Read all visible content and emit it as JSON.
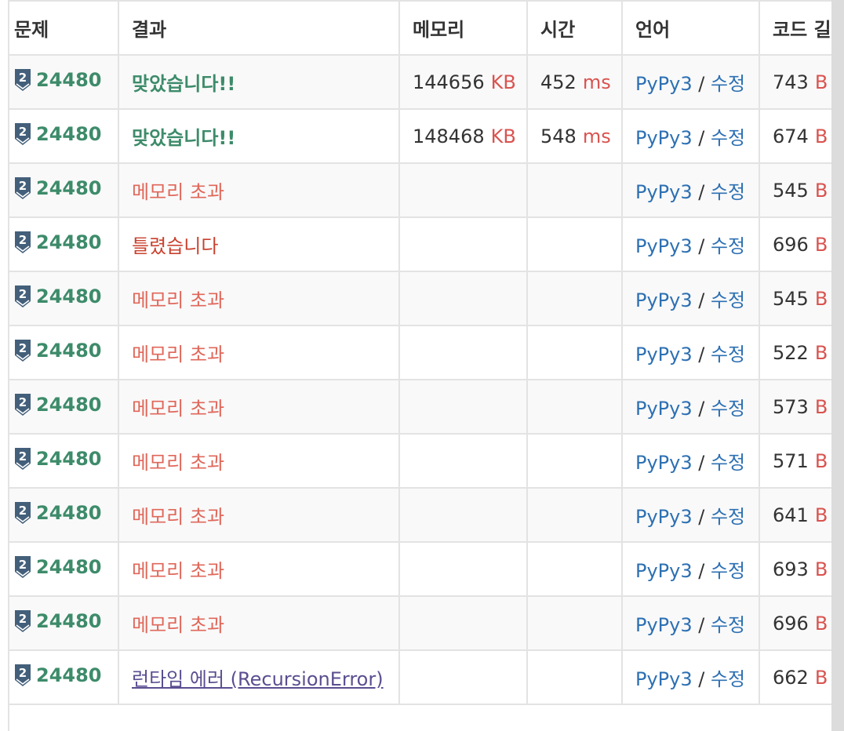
{
  "table": {
    "headers": [
      "문제",
      "결과",
      "메모리",
      "시간",
      "언어",
      "코드 길이"
    ],
    "rows": [
      {
        "problem": "24480",
        "tier": "2",
        "result": "맞았습니다!!",
        "result_type": "ac",
        "memory": "144656",
        "memory_unit": "KB",
        "time": "452",
        "time_unit": "ms",
        "language": "PyPy3",
        "edit": "수정",
        "code_length": "743",
        "code_unit": "B"
      },
      {
        "problem": "24480",
        "tier": "2",
        "result": "맞았습니다!!",
        "result_type": "ac",
        "memory": "148468",
        "memory_unit": "KB",
        "time": "548",
        "time_unit": "ms",
        "language": "PyPy3",
        "edit": "수정",
        "code_length": "674",
        "code_unit": "B"
      },
      {
        "problem": "24480",
        "tier": "2",
        "result": "메모리 초과",
        "result_type": "mle",
        "memory": "",
        "memory_unit": "",
        "time": "",
        "time_unit": "",
        "language": "PyPy3",
        "edit": "수정",
        "code_length": "545",
        "code_unit": "B"
      },
      {
        "problem": "24480",
        "tier": "2",
        "result": "틀렸습니다",
        "result_type": "wa",
        "memory": "",
        "memory_unit": "",
        "time": "",
        "time_unit": "",
        "language": "PyPy3",
        "edit": "수정",
        "code_length": "696",
        "code_unit": "B"
      },
      {
        "problem": "24480",
        "tier": "2",
        "result": "메모리 초과",
        "result_type": "mle",
        "memory": "",
        "memory_unit": "",
        "time": "",
        "time_unit": "",
        "language": "PyPy3",
        "edit": "수정",
        "code_length": "545",
        "code_unit": "B"
      },
      {
        "problem": "24480",
        "tier": "2",
        "result": "메모리 초과",
        "result_type": "mle",
        "memory": "",
        "memory_unit": "",
        "time": "",
        "time_unit": "",
        "language": "PyPy3",
        "edit": "수정",
        "code_length": "522",
        "code_unit": "B"
      },
      {
        "problem": "24480",
        "tier": "2",
        "result": "메모리 초과",
        "result_type": "mle",
        "memory": "",
        "memory_unit": "",
        "time": "",
        "time_unit": "",
        "language": "PyPy3",
        "edit": "수정",
        "code_length": "573",
        "code_unit": "B"
      },
      {
        "problem": "24480",
        "tier": "2",
        "result": "메모리 초과",
        "result_type": "mle",
        "memory": "",
        "memory_unit": "",
        "time": "",
        "time_unit": "",
        "language": "PyPy3",
        "edit": "수정",
        "code_length": "571",
        "code_unit": "B"
      },
      {
        "problem": "24480",
        "tier": "2",
        "result": "메모리 초과",
        "result_type": "mle",
        "memory": "",
        "memory_unit": "",
        "time": "",
        "time_unit": "",
        "language": "PyPy3",
        "edit": "수정",
        "code_length": "641",
        "code_unit": "B"
      },
      {
        "problem": "24480",
        "tier": "2",
        "result": "메모리 초과",
        "result_type": "mle",
        "memory": "",
        "memory_unit": "",
        "time": "",
        "time_unit": "",
        "language": "PyPy3",
        "edit": "수정",
        "code_length": "693",
        "code_unit": "B"
      },
      {
        "problem": "24480",
        "tier": "2",
        "result": "메모리 초과",
        "result_type": "mle",
        "memory": "",
        "memory_unit": "",
        "time": "",
        "time_unit": "",
        "language": "PyPy3",
        "edit": "수정",
        "code_length": "696",
        "code_unit": "B"
      },
      {
        "problem": "24480",
        "tier": "2",
        "result": "런타임 에러 (RecursionError)",
        "result_type": "re",
        "memory": "",
        "memory_unit": "",
        "time": "",
        "time_unit": "",
        "language": "PyPy3",
        "edit": "수정",
        "code_length": "662",
        "code_unit": "B"
      }
    ]
  },
  "colors": {
    "accepted": "#3d8b6a",
    "memory_limit": "#e0675a",
    "wrong": "#c9412e",
    "runtime_error": "#5b4e91",
    "unit": "#d9534f",
    "link": "#2d70b3",
    "tier_badge": "#435f7a"
  },
  "icons": {
    "tier": "silver-tier-badge-icon"
  }
}
